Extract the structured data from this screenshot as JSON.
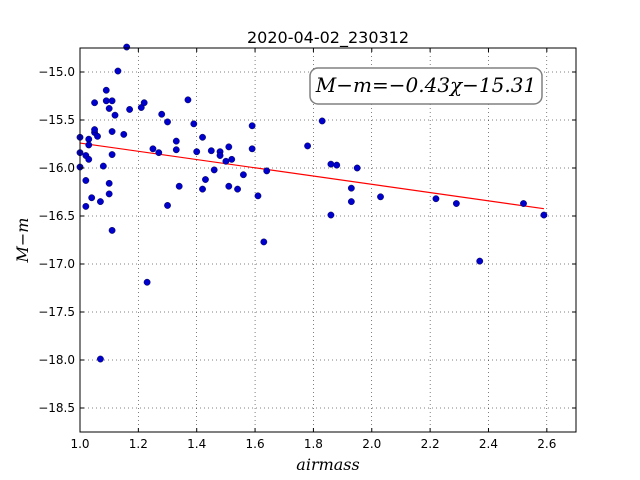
{
  "chart_data": {
    "type": "scatter",
    "title": "2020-04-02_230312",
    "xlabel": "airmass",
    "ylabel": "M−m",
    "xlim": [
      1.0,
      2.7
    ],
    "ylim": [
      -18.75,
      -14.75
    ],
    "ylim_note": "y axis inverted: -15 at top, -18.5 at bottom",
    "xticks": [
      1.0,
      1.2,
      1.4,
      1.6,
      1.8,
      2.0,
      2.2,
      2.4,
      2.6
    ],
    "xtick_labels": [
      "1.0",
      "1.2",
      "1.4",
      "1.6",
      "1.8",
      "2.0",
      "2.2",
      "2.4",
      "2.6"
    ],
    "yticks": [
      -15.0,
      -15.5,
      -16.0,
      -16.5,
      -17.0,
      -17.5,
      -18.0,
      -18.5
    ],
    "ytick_labels": [
      "−15.0",
      "−15.5",
      "−16.0",
      "−16.5",
      "−17.0",
      "−17.5",
      "−18.0",
      "−18.5"
    ],
    "grid": true,
    "annotation": "M−m=−0.43χ−15.31",
    "annotation_position": "top-right",
    "fit": {
      "slope": -0.43,
      "intercept": -15.31,
      "x_range": [
        1.0,
        2.59
      ],
      "color": "#ff0000"
    },
    "point_color": "#0000cc",
    "series": [
      {
        "points": [
          [
            1.0,
            -15.68
          ],
          [
            1.0,
            -15.84
          ],
          [
            1.0,
            -15.99
          ],
          [
            1.02,
            -15.87
          ],
          [
            1.02,
            -16.13
          ],
          [
            1.02,
            -16.4
          ],
          [
            1.03,
            -15.7
          ],
          [
            1.03,
            -15.76
          ],
          [
            1.03,
            -15.91
          ],
          [
            1.04,
            -16.31
          ],
          [
            1.05,
            -15.32
          ],
          [
            1.05,
            -15.63
          ],
          [
            1.05,
            -15.6
          ],
          [
            1.06,
            -15.67
          ],
          [
            1.07,
            -16.35
          ],
          [
            1.07,
            -17.99
          ],
          [
            1.08,
            -15.98
          ],
          [
            1.09,
            -15.19
          ],
          [
            1.09,
            -15.3
          ],
          [
            1.1,
            -16.27
          ],
          [
            1.1,
            -16.16
          ],
          [
            1.1,
            -15.38
          ],
          [
            1.11,
            -15.3
          ],
          [
            1.11,
            -15.62
          ],
          [
            1.11,
            -15.86
          ],
          [
            1.11,
            -16.65
          ],
          [
            1.12,
            -15.45
          ],
          [
            1.13,
            -14.99
          ],
          [
            1.15,
            -15.65
          ],
          [
            1.16,
            -14.74
          ],
          [
            1.17,
            -15.39
          ],
          [
            1.21,
            -15.37
          ],
          [
            1.22,
            -15.32
          ],
          [
            1.23,
            -17.19
          ],
          [
            1.25,
            -15.8
          ],
          [
            1.27,
            -15.84
          ],
          [
            1.28,
            -15.44
          ],
          [
            1.3,
            -15.52
          ],
          [
            1.3,
            -16.39
          ],
          [
            1.33,
            -15.72
          ],
          [
            1.33,
            -15.81
          ],
          [
            1.34,
            -16.19
          ],
          [
            1.37,
            -15.29
          ],
          [
            1.39,
            -15.54
          ],
          [
            1.4,
            -15.83
          ],
          [
            1.42,
            -15.68
          ],
          [
            1.42,
            -16.22
          ],
          [
            1.43,
            -16.12
          ],
          [
            1.45,
            -15.82
          ],
          [
            1.46,
            -16.02
          ],
          [
            1.48,
            -15.83
          ],
          [
            1.48,
            -15.87
          ],
          [
            1.5,
            -15.93
          ],
          [
            1.51,
            -15.78
          ],
          [
            1.51,
            -16.19
          ],
          [
            1.52,
            -15.91
          ],
          [
            1.54,
            -16.22
          ],
          [
            1.56,
            -16.07
          ],
          [
            1.59,
            -15.56
          ],
          [
            1.59,
            -15.8
          ],
          [
            1.61,
            -16.29
          ],
          [
            1.63,
            -16.77
          ],
          [
            1.64,
            -16.03
          ],
          [
            1.78,
            -15.77
          ],
          [
            1.83,
            -15.51
          ],
          [
            1.86,
            -15.96
          ],
          [
            1.86,
            -16.49
          ],
          [
            1.88,
            -15.97
          ],
          [
            1.93,
            -16.21
          ],
          [
            1.93,
            -16.35
          ],
          [
            1.95,
            -16.0
          ],
          [
            2.03,
            -16.3
          ],
          [
            2.22,
            -16.32
          ],
          [
            2.29,
            -16.37
          ],
          [
            2.37,
            -16.97
          ],
          [
            2.52,
            -16.37
          ],
          [
            2.59,
            -16.49
          ]
        ]
      }
    ]
  }
}
